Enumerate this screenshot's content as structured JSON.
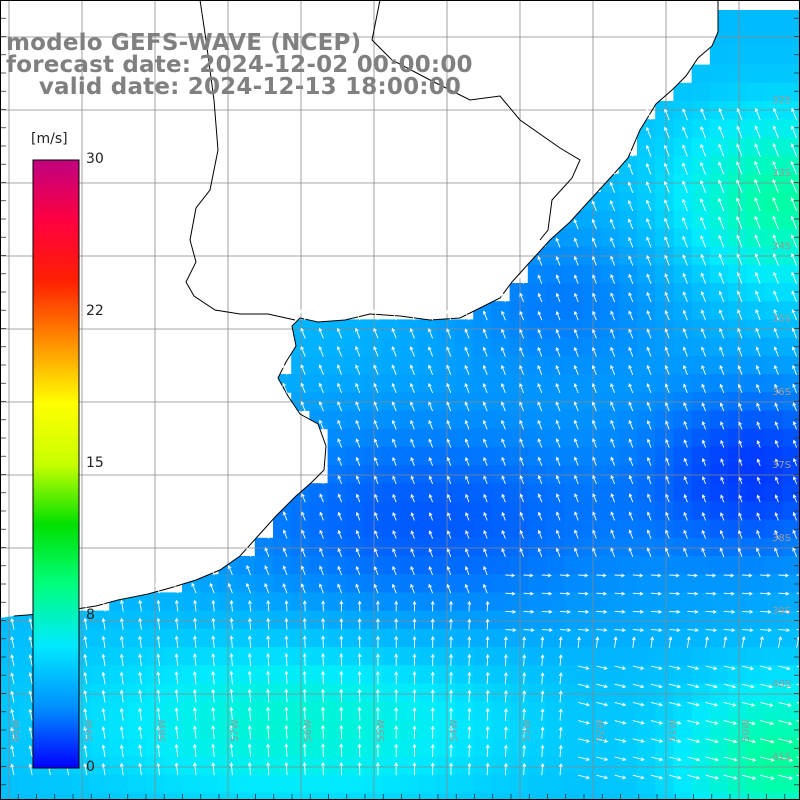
{
  "title": {
    "line1": "modelo GEFS-WAVE (NCEP)",
    "line2": "forecast date: 2024-12-02 00:00:00",
    "line3": "    valid date: 2024-12-13 18:00:00"
  },
  "colorbar": {
    "unit": "[m/s]",
    "ticks": [
      {
        "label": "30",
        "value": 30
      },
      {
        "label": "22",
        "value": 22
      },
      {
        "label": "15",
        "value": 15
      },
      {
        "label": "8",
        "value": 8
      },
      {
        "label": "0",
        "value": 0
      }
    ],
    "colors": [
      "#0000ff",
      "#0090ff",
      "#00e8ff",
      "#00ff80",
      "#00e000",
      "#c8ff00",
      "#ffff00",
      "#ff9000",
      "#ff2000",
      "#ff0040",
      "#c00080"
    ]
  },
  "longitude_labels": [
    "60W",
    "59W",
    "58W",
    "57W",
    "56W",
    "55W",
    "54W",
    "53W",
    "52W",
    "51W",
    "50W"
  ],
  "latitude_labels": [
    "32S",
    "33S",
    "34S",
    "35S",
    "36S",
    "37S",
    "38S",
    "39S",
    "40S",
    "41S"
  ],
  "field": {
    "variable": "wind speed",
    "land_color": "#ffffff",
    "coast_color": "#000000",
    "grid_color": "#888888",
    "vector_color": "#ffffff"
  }
}
